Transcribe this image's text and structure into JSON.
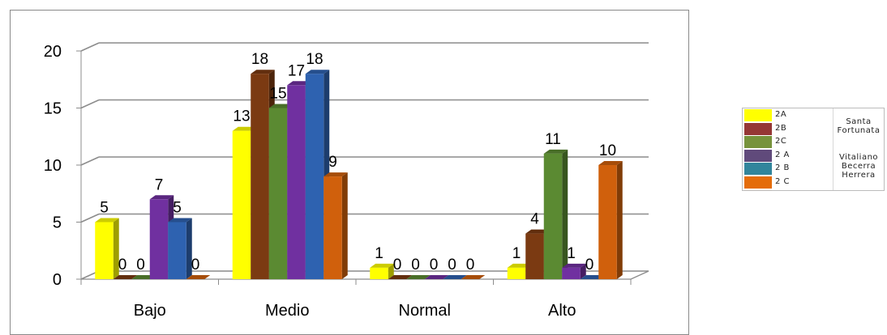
{
  "chart_data": {
    "type": "bar",
    "categories": [
      "Bajo",
      "Medio",
      "Normal",
      "Alto"
    ],
    "ylim": [
      0,
      20
    ],
    "yticks": [
      0,
      5,
      10,
      15,
      20
    ],
    "grid": true,
    "legend_position": "right",
    "series": [
      {
        "name": "2A",
        "values": [
          5,
          13,
          1,
          1
        ]
      },
      {
        "name": "2B",
        "values": [
          0,
          18,
          0,
          4
        ]
      },
      {
        "name": "2C",
        "values": [
          0,
          15,
          0,
          11
        ]
      },
      {
        "name": "2 A",
        "values": [
          7,
          17,
          0,
          1
        ]
      },
      {
        "name": "2 B",
        "values": [
          5,
          18,
          0,
          0
        ]
      },
      {
        "name": "2 C",
        "values": [
          0,
          9,
          0,
          10
        ]
      }
    ]
  },
  "colors": {
    "series": [
      "#ffff00",
      "#7b3a12",
      "#5b8a32",
      "#7030a0",
      "#2e62b0",
      "#d0600c"
    ],
    "legend_swatches": [
      "#ffff00",
      "#953735",
      "#77933c",
      "#604a7b",
      "#31859c",
      "#e46c0a"
    ]
  },
  "legend": {
    "groups": [
      "Santa Fortunata",
      "Vitaliano Becerra Herrera"
    ]
  }
}
